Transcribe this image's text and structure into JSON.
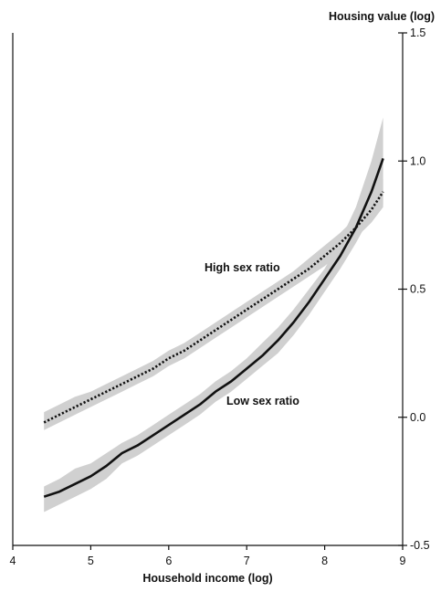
{
  "chart_data": {
    "type": "line",
    "title": "",
    "xlabel": "Household income (log)",
    "ylabel": "Housing value (log)",
    "xlim": [
      4,
      9
    ],
    "ylim": [
      -0.5,
      1.5
    ],
    "x_ticks": [
      "4",
      "5",
      "6",
      "7",
      "8",
      "9"
    ],
    "y_ticks": [
      "1.5",
      "1.0",
      "0.5",
      "0.0",
      "-0.5"
    ],
    "grid": false,
    "annotations": {
      "high": "High sex ratio",
      "low": "Low sex ratio"
    },
    "series": [
      {
        "name": "High sex ratio",
        "style": "dotted",
        "color": "#111111",
        "band_color": "#d0d0d0",
        "x": [
          4.4,
          4.6,
          4.8,
          5.0,
          5.2,
          5.4,
          5.6,
          5.8,
          6.0,
          6.2,
          6.4,
          6.6,
          6.8,
          7.0,
          7.2,
          7.4,
          7.6,
          7.8,
          8.0,
          8.2,
          8.4,
          8.6,
          8.75
        ],
        "y": [
          -0.02,
          0.01,
          0.04,
          0.07,
          0.1,
          0.13,
          0.16,
          0.19,
          0.23,
          0.26,
          0.3,
          0.34,
          0.38,
          0.42,
          0.46,
          0.5,
          0.54,
          0.58,
          0.63,
          0.68,
          0.74,
          0.81,
          0.88
        ],
        "upper": [
          0.02,
          0.05,
          0.08,
          0.1,
          0.13,
          0.16,
          0.19,
          0.22,
          0.26,
          0.29,
          0.33,
          0.37,
          0.41,
          0.45,
          0.49,
          0.53,
          0.57,
          0.62,
          0.67,
          0.72,
          0.78,
          0.86,
          0.93
        ],
        "lower": [
          -0.05,
          -0.02,
          0.01,
          0.04,
          0.07,
          0.1,
          0.13,
          0.16,
          0.2,
          0.23,
          0.27,
          0.31,
          0.35,
          0.39,
          0.43,
          0.47,
          0.51,
          0.55,
          0.59,
          0.64,
          0.7,
          0.76,
          0.82
        ]
      },
      {
        "name": "Low sex ratio",
        "style": "solid",
        "color": "#111111",
        "band_color": "#d0d0d0",
        "x": [
          4.4,
          4.6,
          4.8,
          5.0,
          5.2,
          5.4,
          5.6,
          5.8,
          6.0,
          6.2,
          6.4,
          6.6,
          6.8,
          7.0,
          7.2,
          7.4,
          7.6,
          7.8,
          8.0,
          8.2,
          8.4,
          8.6,
          8.75
        ],
        "y": [
          -0.31,
          -0.29,
          -0.26,
          -0.23,
          -0.19,
          -0.14,
          -0.11,
          -0.07,
          -0.03,
          0.01,
          0.05,
          0.1,
          0.14,
          0.19,
          0.24,
          0.3,
          0.37,
          0.45,
          0.54,
          0.63,
          0.74,
          0.88,
          1.01
        ],
        "upper": [
          -0.27,
          -0.24,
          -0.2,
          -0.18,
          -0.14,
          -0.1,
          -0.07,
          -0.03,
          0.01,
          0.05,
          0.09,
          0.14,
          0.18,
          0.23,
          0.29,
          0.35,
          0.42,
          0.5,
          0.58,
          0.69,
          0.82,
          1.0,
          1.17
        ],
        "lower": [
          -0.37,
          -0.34,
          -0.31,
          -0.28,
          -0.24,
          -0.18,
          -0.15,
          -0.11,
          -0.07,
          -0.03,
          0.01,
          0.06,
          0.1,
          0.15,
          0.2,
          0.25,
          0.32,
          0.4,
          0.49,
          0.58,
          0.68,
          0.79,
          0.83
        ]
      }
    ]
  }
}
